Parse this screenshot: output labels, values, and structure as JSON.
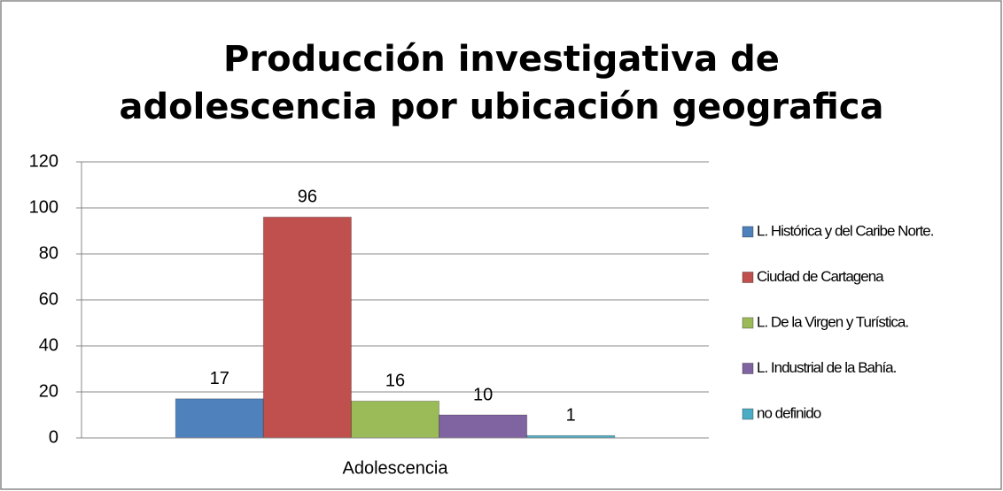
{
  "chart_data": {
    "type": "bar",
    "title": "Producción investigativa de adolescencia por ubicación geografica",
    "categories": [
      "Adolescencia"
    ],
    "series": [
      {
        "name": "L. Histórica y del Caribe Norte.",
        "color": "#4f81bd",
        "values": [
          17
        ]
      },
      {
        "name": "Ciudad de Cartagena",
        "color": "#c0504d",
        "values": [
          96
        ]
      },
      {
        "name": "L. De la Virgen y Turística.",
        "color": "#9bbb59",
        "values": [
          16
        ]
      },
      {
        "name": "L. Industrial de la Bahía.",
        "color": "#8064a2",
        "values": [
          10
        ]
      },
      {
        "name": "no definido",
        "color": "#4bacc6",
        "values": [
          1
        ]
      }
    ],
    "ylim": [
      0,
      120
    ],
    "yticks": [
      0,
      20,
      40,
      60,
      80,
      100,
      120
    ],
    "grid": true,
    "legend": "right"
  }
}
